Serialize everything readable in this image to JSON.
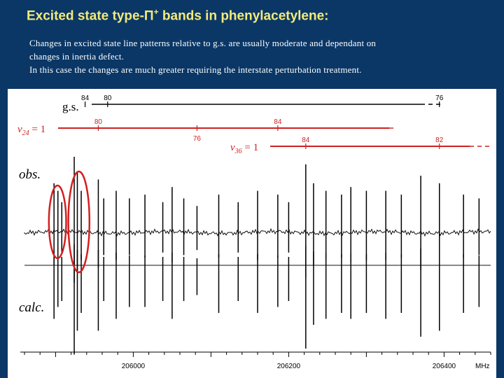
{
  "slide": {
    "title_prefix": "Excited state type-",
    "title_symbol": "Π",
    "title_sup": "+",
    "title_suffix": " bands in phenylacetylene:",
    "desc_lines": [
      "Changes in excited state line patterns relative to g.s. are usually moderate and dependant on",
      "changes in inertia defect.",
      "In this case the changes are much greater requiring the interstate perturbation treatment."
    ]
  },
  "chart_data": {
    "type": "line",
    "xlabel": "MHz",
    "xlim": [
      205860,
      206460
    ],
    "x_ticks": [
      206000,
      206200,
      206400
    ],
    "trace_labels": {
      "observed": "obs.",
      "calculated": "calc."
    },
    "progressions": [
      {
        "label": "g.s.",
        "color": "#000000",
        "marks": [
          {
            "x": 205938,
            "label": "84"
          },
          {
            "x": 205967,
            "label": "80"
          },
          {
            "x": 206394,
            "label": "76"
          }
        ]
      },
      {
        "label_main": "v",
        "label_sub": "24",
        "label_tail": " = 1",
        "color": "#cc2222",
        "marks": [
          {
            "x": 205955,
            "label": "80"
          },
          {
            "x": 206082,
            "label": "76"
          },
          {
            "x": 206186,
            "label": "84"
          }
        ]
      },
      {
        "label_main": "v",
        "label_sub": "36",
        "label_tail": " = 1",
        "color": "#cc2222",
        "marks": [
          {
            "x": 206222,
            "label": "84"
          },
          {
            "x": 206394,
            "label": "82"
          }
        ]
      }
    ],
    "lines": [
      {
        "x": 205898,
        "obs": 0.65,
        "calc": 0.45
      },
      {
        "x": 205903,
        "obs": 0.55,
        "calc": 0.35
      },
      {
        "x": 205908,
        "obs": 0.4,
        "calc": 0.3
      },
      {
        "x": 205924,
        "obs": 1.0,
        "calc": 0.75
      },
      {
        "x": 205928,
        "obs": 0.8,
        "calc": 0.55
      },
      {
        "x": 205933,
        "obs": 0.55,
        "calc": 0.4
      },
      {
        "x": 205955,
        "obs": 0.7,
        "calc": 0.55
      },
      {
        "x": 205962,
        "obs": 0.45,
        "calc": 0.3
      },
      {
        "x": 205978,
        "obs": 0.55,
        "calc": 0.45
      },
      {
        "x": 205995,
        "obs": 0.45,
        "calc": 0.35
      },
      {
        "x": 206015,
        "obs": 0.5,
        "calc": 0.35
      },
      {
        "x": 206038,
        "obs": 0.4,
        "calc": 0.3
      },
      {
        "x": 206050,
        "obs": 0.6,
        "calc": 0.45
      },
      {
        "x": 206065,
        "obs": 0.45,
        "calc": 0.3
      },
      {
        "x": 206082,
        "obs": 0.35,
        "calc": 0.25
      },
      {
        "x": 206110,
        "obs": 0.5,
        "calc": 0.4
      },
      {
        "x": 206135,
        "obs": 0.4,
        "calc": 0.3
      },
      {
        "x": 206160,
        "obs": 0.55,
        "calc": 0.4
      },
      {
        "x": 206186,
        "obs": 0.5,
        "calc": 0.35
      },
      {
        "x": 206200,
        "obs": 0.4,
        "calc": 0.3
      },
      {
        "x": 206222,
        "obs": 0.9,
        "calc": 0.7
      },
      {
        "x": 206232,
        "obs": 0.65,
        "calc": 0.5
      },
      {
        "x": 206248,
        "obs": 0.55,
        "calc": 0.45
      },
      {
        "x": 206268,
        "obs": 0.5,
        "calc": 0.4
      },
      {
        "x": 206280,
        "obs": 0.6,
        "calc": 0.45
      },
      {
        "x": 206300,
        "obs": 0.55,
        "calc": 0.4
      },
      {
        "x": 206325,
        "obs": 0.55,
        "calc": 0.45
      },
      {
        "x": 206345,
        "obs": 0.5,
        "calc": 0.4
      },
      {
        "x": 206370,
        "obs": 0.75,
        "calc": 0.6
      },
      {
        "x": 206394,
        "obs": 0.65,
        "calc": 0.55
      },
      {
        "x": 206425,
        "obs": 0.5,
        "calc": 0.4
      },
      {
        "x": 206445,
        "obs": 0.45,
        "calc": 0.35
      }
    ],
    "highlight_ellipses": [
      {
        "x_from": 205895,
        "x_to": 205910
      },
      {
        "x_from": 205920,
        "x_to": 205940
      }
    ],
    "highlight_color": "#d41f1f"
  }
}
